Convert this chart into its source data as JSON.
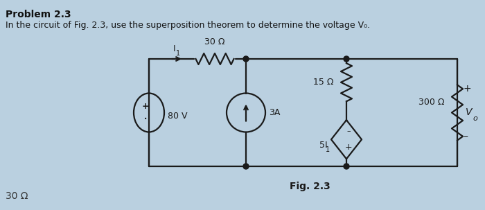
{
  "title_bold": "Problem 2.3",
  "title_text": "In the circuit of Fig. 2.3, use the superposition theorem to determine the voltage V₀.",
  "fig_label": "Fig. 2.3",
  "bg_color": "#bad0e0",
  "circuit_color": "#1a1a1a",
  "circuit_linewidth": 1.6,
  "resistor_30_label": "30 Ω",
  "resistor_15_label": "15 Ω",
  "resistor_300_label": "300 Ω",
  "voltage_source_label": "80 V",
  "current_source_label": "3A",
  "dependent_source_label": "5I",
  "current_label": "I",
  "vo_label": "V",
  "bottom_left_label": "30 Ω"
}
